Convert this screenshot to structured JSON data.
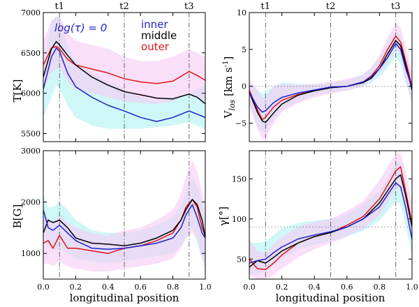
{
  "figure": {
    "xlabel": "longitudinal position",
    "time_marks": [
      {
        "label": "t1",
        "x": 0.1
      },
      {
        "label": "t2",
        "x": 0.5
      },
      {
        "label": "t3",
        "x": 0.9
      }
    ],
    "x_ticks": [
      "0.0",
      "0.2",
      "0.4",
      "0.6",
      "0.8",
      "1.0"
    ],
    "colors": {
      "inner": "#1f1fc8",
      "middle": "#000000",
      "outer": "#e01515",
      "band_inner": "#bff4f4",
      "band_outer": "#f7c9f5",
      "band_overlap": "#d9dcf8"
    }
  },
  "chart_data": [
    {
      "id": "T",
      "type": "line",
      "panel": "top-left",
      "ylabel": "T[K]",
      "ylim": [
        5400,
        7000
      ],
      "yticks": [
        "5500",
        "6000",
        "6500",
        "7000"
      ],
      "legend": {
        "title": "log(τ) = 0",
        "entries": [
          "inner",
          "middle",
          "outer"
        ]
      },
      "x": [
        0,
        0.05,
        0.08,
        0.1,
        0.15,
        0.2,
        0.3,
        0.4,
        0.5,
        0.6,
        0.7,
        0.8,
        0.9,
        0.95,
        1.0
      ],
      "series": [
        {
          "name": "inner",
          "values": [
            6050,
            6450,
            6560,
            6520,
            6250,
            6080,
            5950,
            5850,
            5780,
            5700,
            5650,
            5700,
            5780,
            5740,
            5700
          ],
          "band_lo": [
            5700,
            5950,
            6100,
            6050,
            5850,
            5700,
            5600,
            5560,
            5560,
            5560,
            5580,
            5600,
            5640,
            5600,
            5550
          ],
          "band_hi": [
            6300,
            6900,
            6950,
            6950,
            6600,
            6400,
            6250,
            6150,
            6050,
            5950,
            5900,
            5950,
            6000,
            6050,
            6100
          ]
        },
        {
          "name": "middle",
          "values": [
            6200,
            6550,
            6640,
            6600,
            6470,
            6350,
            6200,
            6100,
            6020,
            5980,
            5940,
            5930,
            5990,
            5950,
            5870
          ]
        },
        {
          "name": "outer",
          "values": [
            6350,
            6560,
            6580,
            6550,
            6420,
            6350,
            6300,
            6250,
            6180,
            6140,
            6120,
            6150,
            6270,
            6220,
            6160
          ],
          "band_lo": [
            6050,
            6250,
            6300,
            6300,
            6150,
            6050,
            6000,
            5950,
            5900,
            5880,
            5870,
            5900,
            6000,
            5950,
            5900
          ],
          "band_hi": [
            6650,
            6900,
            6950,
            6950,
            6750,
            6650,
            6600,
            6550,
            6450,
            6400,
            6400,
            6450,
            6550,
            6500,
            6450
          ]
        }
      ]
    },
    {
      "id": "V",
      "type": "line",
      "panel": "top-right",
      "ylabel": "V_los [km s^-1]",
      "ylim": [
        -7.5,
        10
      ],
      "yticks": [
        "-5",
        "0",
        "5",
        "10"
      ],
      "zero_line": 0,
      "x": [
        0,
        0.05,
        0.08,
        0.1,
        0.15,
        0.2,
        0.3,
        0.4,
        0.5,
        0.6,
        0.7,
        0.75,
        0.8,
        0.85,
        0.9,
        0.93,
        0.96,
        1.0
      ],
      "series": [
        {
          "name": "inner",
          "values": [
            -0.8,
            -2.8,
            -3.5,
            -3.3,
            -2.2,
            -1.5,
            -0.9,
            -0.5,
            -0.1,
            0.0,
            0.6,
            1.3,
            2.4,
            3.9,
            5.8,
            5.0,
            2.5,
            -0.2
          ],
          "band_lo": [
            -2.5,
            -5.5,
            -6.2,
            -6.0,
            -4.5,
            -3.2,
            -2.0,
            -1.2,
            -0.8,
            -0.5,
            0.0,
            0.5,
            1.2,
            2.5,
            4.0,
            3.0,
            0.5,
            -2.0
          ],
          "band_hi": [
            0.5,
            -0.5,
            -1.0,
            -0.8,
            0.0,
            0.5,
            0.3,
            0.3,
            0.5,
            0.8,
            1.6,
            2.5,
            4.0,
            5.8,
            7.5,
            6.8,
            4.5,
            1.5
          ]
        },
        {
          "name": "middle",
          "values": [
            -0.8,
            -3.5,
            -4.7,
            -4.9,
            -3.6,
            -2.4,
            -1.2,
            -0.6,
            -0.2,
            0.0,
            0.5,
            1.1,
            2.4,
            4.4,
            6.2,
            5.5,
            3.0,
            -0.5
          ]
        },
        {
          "name": "outer",
          "values": [
            -0.5,
            -3.2,
            -4.5,
            -4.2,
            -2.8,
            -1.9,
            -1.1,
            -0.6,
            -0.2,
            0.0,
            0.6,
            1.4,
            2.8,
            5.0,
            6.8,
            6.0,
            3.5,
            0.0
          ],
          "band_lo": [
            -2.5,
            -5.8,
            -7.2,
            -7.0,
            -5.0,
            -3.5,
            -2.3,
            -1.5,
            -1.0,
            -0.6,
            0.0,
            0.8,
            1.8,
            3.2,
            5.0,
            4.2,
            1.0,
            -2.5
          ],
          "band_hi": [
            1.0,
            -0.5,
            -1.5,
            -1.5,
            0.0,
            0.3,
            0.2,
            0.3,
            0.6,
            1.0,
            1.6,
            2.6,
            4.2,
            6.6,
            8.6,
            8.0,
            5.5,
            2.0
          ]
        }
      ]
    },
    {
      "id": "B",
      "type": "line",
      "panel": "bottom-left",
      "ylabel": "B[G]",
      "ylim": [
        500,
        3000
      ],
      "yticks": [
        "1000",
        "2000",
        "3000"
      ],
      "x": [
        0,
        0.03,
        0.06,
        0.1,
        0.15,
        0.2,
        0.3,
        0.4,
        0.5,
        0.6,
        0.7,
        0.8,
        0.85,
        0.88,
        0.92,
        0.95,
        0.98,
        1.0
      ],
      "series": [
        {
          "name": "inner",
          "values": [
            1850,
            1500,
            1450,
            1550,
            1400,
            1250,
            1100,
            1080,
            1100,
            1150,
            1200,
            1300,
            1500,
            1750,
            1950,
            1700,
            1400,
            1300
          ],
          "band_lo": [
            1500,
            1150,
            1050,
            1100,
            1000,
            900,
            850,
            800,
            850,
            900,
            950,
            1000,
            1150,
            1300,
            1500,
            1200,
            900,
            700
          ],
          "band_hi": [
            2150,
            1900,
            1900,
            2000,
            1850,
            1650,
            1450,
            1400,
            1400,
            1450,
            1550,
            1700,
            1950,
            2200,
            2500,
            2300,
            2000,
            1700
          ]
        },
        {
          "name": "middle",
          "values": [
            1400,
            1650,
            1600,
            1650,
            1500,
            1300,
            1200,
            1180,
            1150,
            1200,
            1300,
            1450,
            1650,
            1850,
            2050,
            1950,
            1650,
            1300
          ]
        },
        {
          "name": "outer",
          "values": [
            1200,
            1250,
            1100,
            1350,
            1100,
            1100,
            1050,
            1000,
            1100,
            1150,
            1250,
            1400,
            1650,
            1900,
            2050,
            1900,
            1500,
            1350
          ],
          "band_lo": [
            800,
            800,
            750,
            850,
            750,
            700,
            650,
            650,
            700,
            750,
            800,
            900,
            1100,
            1300,
            1400,
            1300,
            900,
            700
          ],
          "band_hi": [
            1700,
            1700,
            1600,
            1750,
            1600,
            1500,
            1400,
            1350,
            1450,
            1500,
            1650,
            1850,
            2150,
            2500,
            2800,
            2600,
            2200,
            1900
          ]
        }
      ]
    },
    {
      "id": "G",
      "type": "line",
      "panel": "bottom-right",
      "ylabel": "γ[°]",
      "ylim": [
        25,
        185
      ],
      "yticks": [
        "50",
        "100",
        "150"
      ],
      "ref_line": 90,
      "x": [
        0,
        0.05,
        0.1,
        0.15,
        0.2,
        0.3,
        0.4,
        0.5,
        0.6,
        0.7,
        0.8,
        0.85,
        0.9,
        0.93,
        0.96,
        1.0
      ],
      "series": [
        {
          "name": "inner",
          "values": [
            45,
            48,
            50,
            58,
            65,
            75,
            80,
            84,
            90,
            100,
            115,
            130,
            145,
            140,
            115,
            75
          ],
          "band_lo": [
            30,
            32,
            34,
            42,
            50,
            62,
            68,
            72,
            78,
            85,
            98,
            110,
            122,
            118,
            92,
            55
          ],
          "band_hi": [
            70,
            70,
            72,
            80,
            88,
            95,
            98,
            100,
            106,
            118,
            135,
            150,
            172,
            168,
            140,
            100
          ]
        },
        {
          "name": "middle",
          "values": [
            40,
            48,
            45,
            52,
            60,
            70,
            78,
            83,
            90,
            100,
            120,
            135,
            150,
            155,
            130,
            90
          ]
        },
        {
          "name": "outer",
          "values": [
            50,
            38,
            37,
            45,
            55,
            70,
            78,
            83,
            92,
            103,
            125,
            142,
            160,
            165,
            135,
            95
          ],
          "band_lo": [
            30,
            25,
            25,
            30,
            38,
            52,
            62,
            70,
            78,
            88,
            105,
            120,
            138,
            140,
            110,
            70
          ],
          "band_hi": [
            75,
            60,
            58,
            68,
            78,
            90,
            96,
            100,
            110,
            122,
            148,
            165,
            182,
            182,
            160,
            120
          ]
        }
      ]
    }
  ]
}
